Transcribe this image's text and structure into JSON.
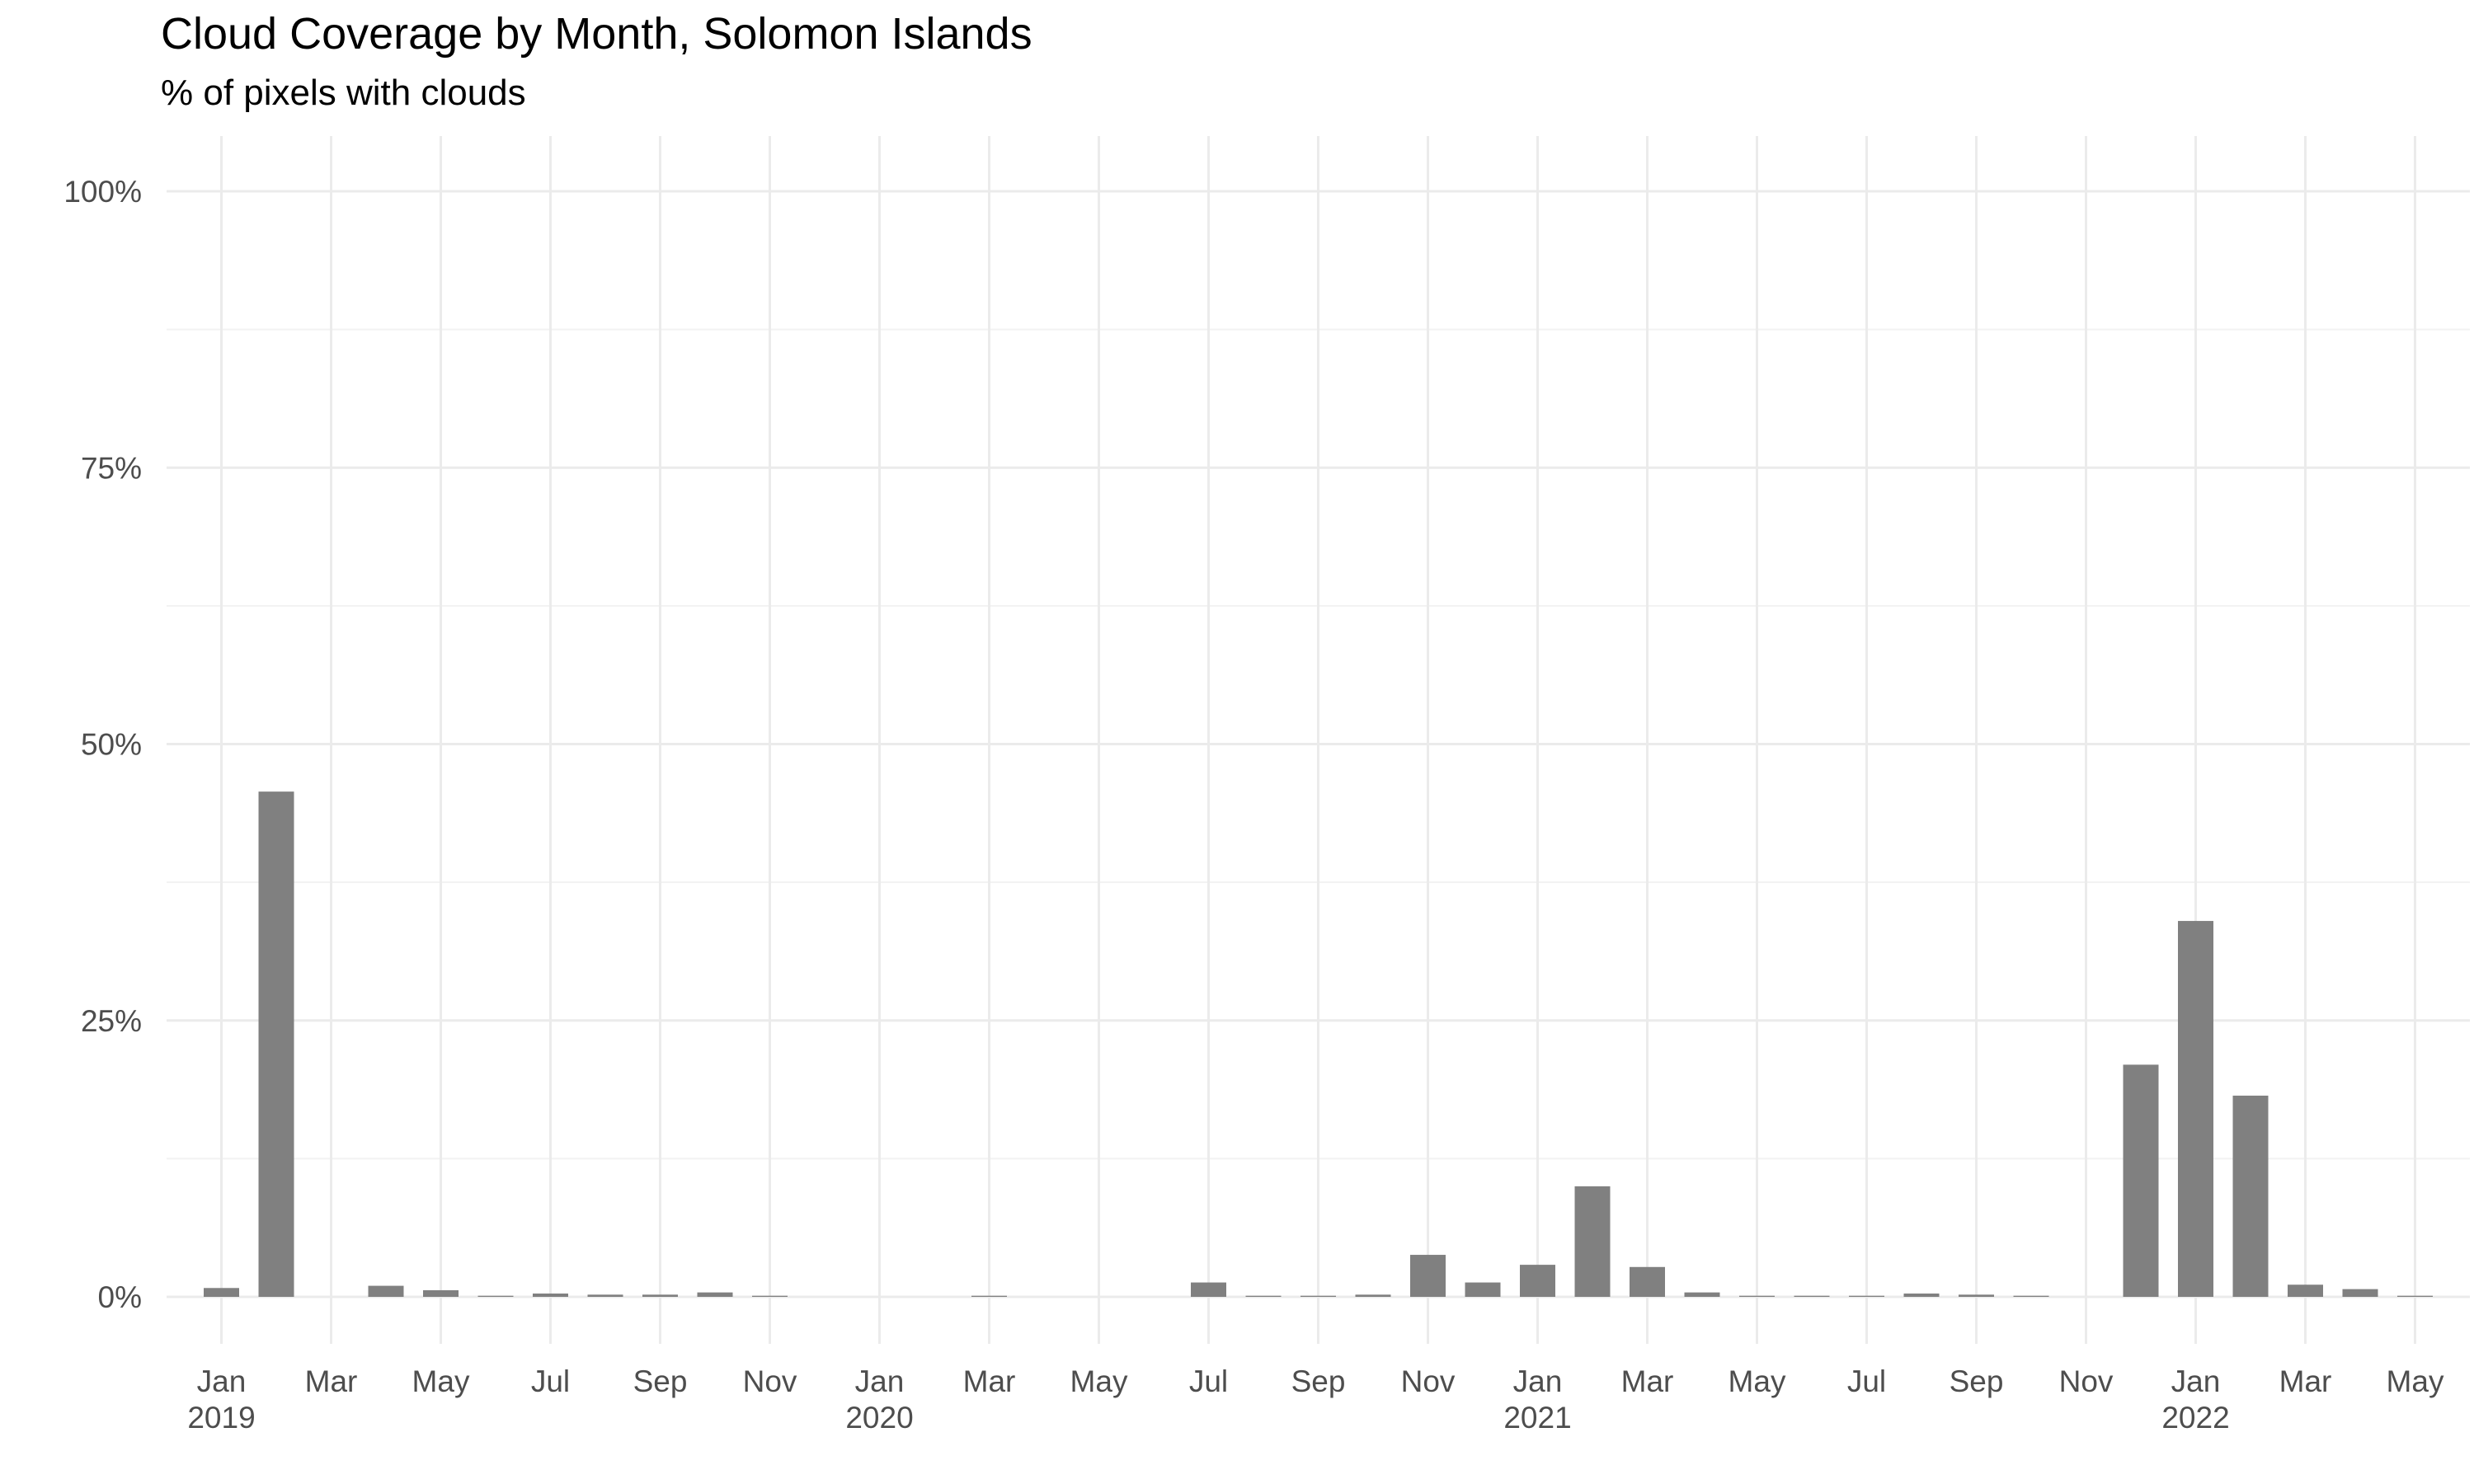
{
  "chart_data": {
    "type": "bar",
    "title": "Cloud Coverage by Month, Solomon Islands",
    "subtitle": "% of pixels with clouds",
    "xlabel": "",
    "ylabel": "",
    "ylim": [
      0,
      1
    ],
    "y_ticks": [
      {
        "value": 0,
        "label": "0%"
      },
      {
        "value": 0.25,
        "label": "25%"
      },
      {
        "value": 0.5,
        "label": "50%"
      },
      {
        "value": 0.75,
        "label": "75%"
      },
      {
        "value": 1,
        "label": "100%"
      }
    ],
    "x_ticks": [
      {
        "date": "2019-01",
        "month": "Jan",
        "year": "2019"
      },
      {
        "date": "2019-03",
        "month": "Mar",
        "year": ""
      },
      {
        "date": "2019-05",
        "month": "May",
        "year": ""
      },
      {
        "date": "2019-07",
        "month": "Jul",
        "year": ""
      },
      {
        "date": "2019-09",
        "month": "Sep",
        "year": ""
      },
      {
        "date": "2019-11",
        "month": "Nov",
        "year": ""
      },
      {
        "date": "2020-01",
        "month": "Jan",
        "year": "2020"
      },
      {
        "date": "2020-03",
        "month": "Mar",
        "year": ""
      },
      {
        "date": "2020-05",
        "month": "May",
        "year": ""
      },
      {
        "date": "2020-07",
        "month": "Jul",
        "year": ""
      },
      {
        "date": "2020-09",
        "month": "Sep",
        "year": ""
      },
      {
        "date": "2020-11",
        "month": "Nov",
        "year": ""
      },
      {
        "date": "2021-01",
        "month": "Jan",
        "year": "2021"
      },
      {
        "date": "2021-03",
        "month": "Mar",
        "year": ""
      },
      {
        "date": "2021-05",
        "month": "May",
        "year": ""
      },
      {
        "date": "2021-07",
        "month": "Jul",
        "year": ""
      },
      {
        "date": "2021-09",
        "month": "Sep",
        "year": ""
      },
      {
        "date": "2021-11",
        "month": "Nov",
        "year": ""
      },
      {
        "date": "2022-01",
        "month": "Jan",
        "year": "2022"
      },
      {
        "date": "2022-03",
        "month": "Mar",
        "year": ""
      },
      {
        "date": "2022-05",
        "month": "May",
        "year": ""
      }
    ],
    "x_range": [
      "2018-12",
      "2022-06"
    ],
    "bar_color": "#808080",
    "grid": true,
    "points": [
      {
        "date": "2019-01",
        "value": 0.008
      },
      {
        "date": "2019-02",
        "value": 0.457
      },
      {
        "date": "2019-04",
        "value": 0.01
      },
      {
        "date": "2019-05",
        "value": 0.006
      },
      {
        "date": "2019-06",
        "value": 0.001
      },
      {
        "date": "2019-07",
        "value": 0.003
      },
      {
        "date": "2019-08",
        "value": 0.002
      },
      {
        "date": "2019-09",
        "value": 0.002
      },
      {
        "date": "2019-10",
        "value": 0.004
      },
      {
        "date": "2019-11",
        "value": 0.001
      },
      {
        "date": "2020-03",
        "value": 0.001
      },
      {
        "date": "2020-07",
        "value": 0.013
      },
      {
        "date": "2020-08",
        "value": 0.001
      },
      {
        "date": "2020-09",
        "value": 0.001
      },
      {
        "date": "2020-10",
        "value": 0.002
      },
      {
        "date": "2020-11",
        "value": 0.038
      },
      {
        "date": "2020-12",
        "value": 0.013
      },
      {
        "date": "2021-01",
        "value": 0.029
      },
      {
        "date": "2021-02",
        "value": 0.1
      },
      {
        "date": "2021-03",
        "value": 0.027
      },
      {
        "date": "2021-04",
        "value": 0.004
      },
      {
        "date": "2021-05",
        "value": 0.001
      },
      {
        "date": "2021-06",
        "value": 0.001
      },
      {
        "date": "2021-07",
        "value": 0.001
      },
      {
        "date": "2021-08",
        "value": 0.003
      },
      {
        "date": "2021-09",
        "value": 0.002
      },
      {
        "date": "2021-10",
        "value": 0.001
      },
      {
        "date": "2021-12",
        "value": 0.21
      },
      {
        "date": "2022-01",
        "value": 0.34
      },
      {
        "date": "2022-02",
        "value": 0.182
      },
      {
        "date": "2022-03",
        "value": 0.011
      },
      {
        "date": "2022-04",
        "value": 0.007
      },
      {
        "date": "2022-05",
        "value": 0.001
      }
    ]
  }
}
